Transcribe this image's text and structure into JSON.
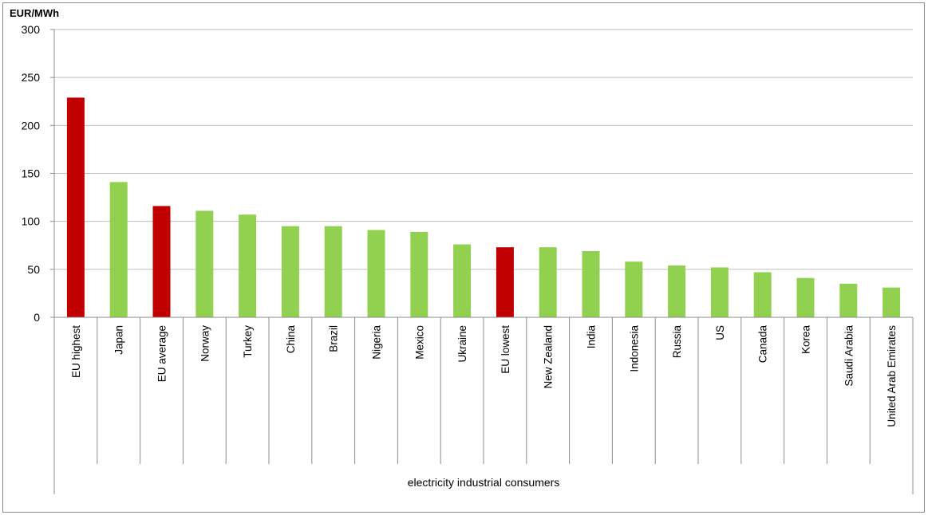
{
  "chart_data": {
    "type": "bar",
    "ylabel": "EUR/MWh",
    "xlabel": "electricity industrial consumers",
    "ylim": [
      0,
      300
    ],
    "yticks": [
      0,
      50,
      100,
      150,
      200,
      250,
      300
    ],
    "grid": true,
    "categories": [
      "EU highest",
      "Japan",
      "EU average",
      "Norway",
      "Turkey",
      "China",
      "Brazil",
      "Nigeria",
      "Mexico",
      "Ukraine",
      "EU lowest",
      "New Zealand",
      "India",
      "Indonesia",
      "Russia",
      "US",
      "Canada",
      "Korea",
      "Saudi Arabia",
      "United Arab Emirates"
    ],
    "values": [
      229,
      141,
      116,
      111,
      107,
      95,
      95,
      91,
      89,
      76,
      73,
      73,
      69,
      58,
      54,
      52,
      47,
      41,
      35,
      31
    ],
    "bar_colors": [
      "#c00000",
      "#92d050",
      "#c00000",
      "#92d050",
      "#92d050",
      "#92d050",
      "#92d050",
      "#92d050",
      "#92d050",
      "#92d050",
      "#c00000",
      "#92d050",
      "#92d050",
      "#92d050",
      "#92d050",
      "#92d050",
      "#92d050",
      "#92d050",
      "#92d050",
      "#92d050"
    ]
  },
  "colors": {
    "eu": "#c00000",
    "other": "#92d050",
    "grid": "#bfbfbf",
    "axis": "#8c8c8c"
  }
}
